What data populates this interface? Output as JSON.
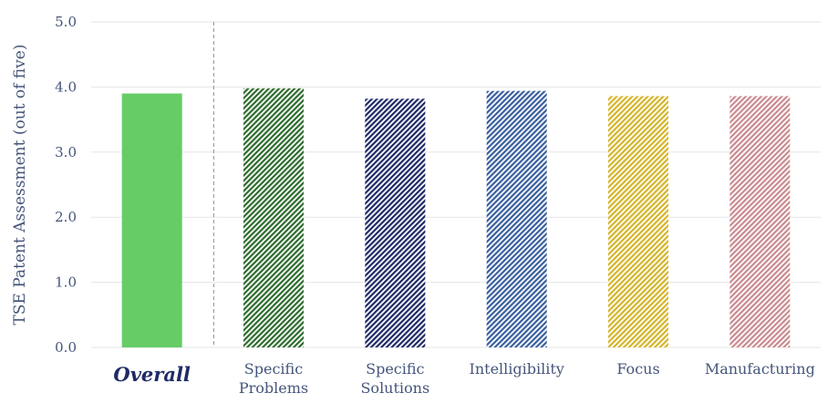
{
  "chart_data": {
    "type": "bar",
    "title": "",
    "xlabel": "",
    "ylabel": "TSE Patent Assessment (out of five)",
    "ylim": [
      0,
      5
    ],
    "yticks": [
      {
        "value": 0,
        "label": "0.0"
      },
      {
        "value": 1,
        "label": "1.0"
      },
      {
        "value": 2,
        "label": "2.0"
      },
      {
        "value": 3,
        "label": "3.0"
      },
      {
        "value": 4,
        "label": "4.0"
      },
      {
        "value": 5,
        "label": "5.0"
      }
    ],
    "grid": true,
    "separator_after_first": true,
    "categories": [
      {
        "lines": [
          "Overall"
        ],
        "emphasis": true
      },
      {
        "lines": [
          "Specific",
          "Problems"
        ],
        "emphasis": false
      },
      {
        "lines": [
          "Specific",
          "Solutions"
        ],
        "emphasis": false
      },
      {
        "lines": [
          "Intelligibility"
        ],
        "emphasis": false
      },
      {
        "lines": [
          "Focus"
        ],
        "emphasis": false
      },
      {
        "lines": [
          "Manufacturing"
        ],
        "emphasis": false
      }
    ],
    "values": [
      3.9,
      3.98,
      3.82,
      3.94,
      3.86,
      3.86
    ],
    "bar_fills": [
      {
        "style": "solid",
        "color": "#66cc66"
      },
      {
        "style": "hatch",
        "color": "#2e6b2e"
      },
      {
        "style": "hatch",
        "color": "#1f2a66"
      },
      {
        "style": "hatch",
        "color": "#3a5f9e"
      },
      {
        "style": "hatch",
        "color": "#d4b52a"
      },
      {
        "style": "hatch",
        "color": "#c98a8f"
      }
    ],
    "colors": {
      "axis_text": "#44557a",
      "emphasis_text": "#1f2a66",
      "grid": "#e6e6e6",
      "separator": "#8a8a8a"
    }
  }
}
